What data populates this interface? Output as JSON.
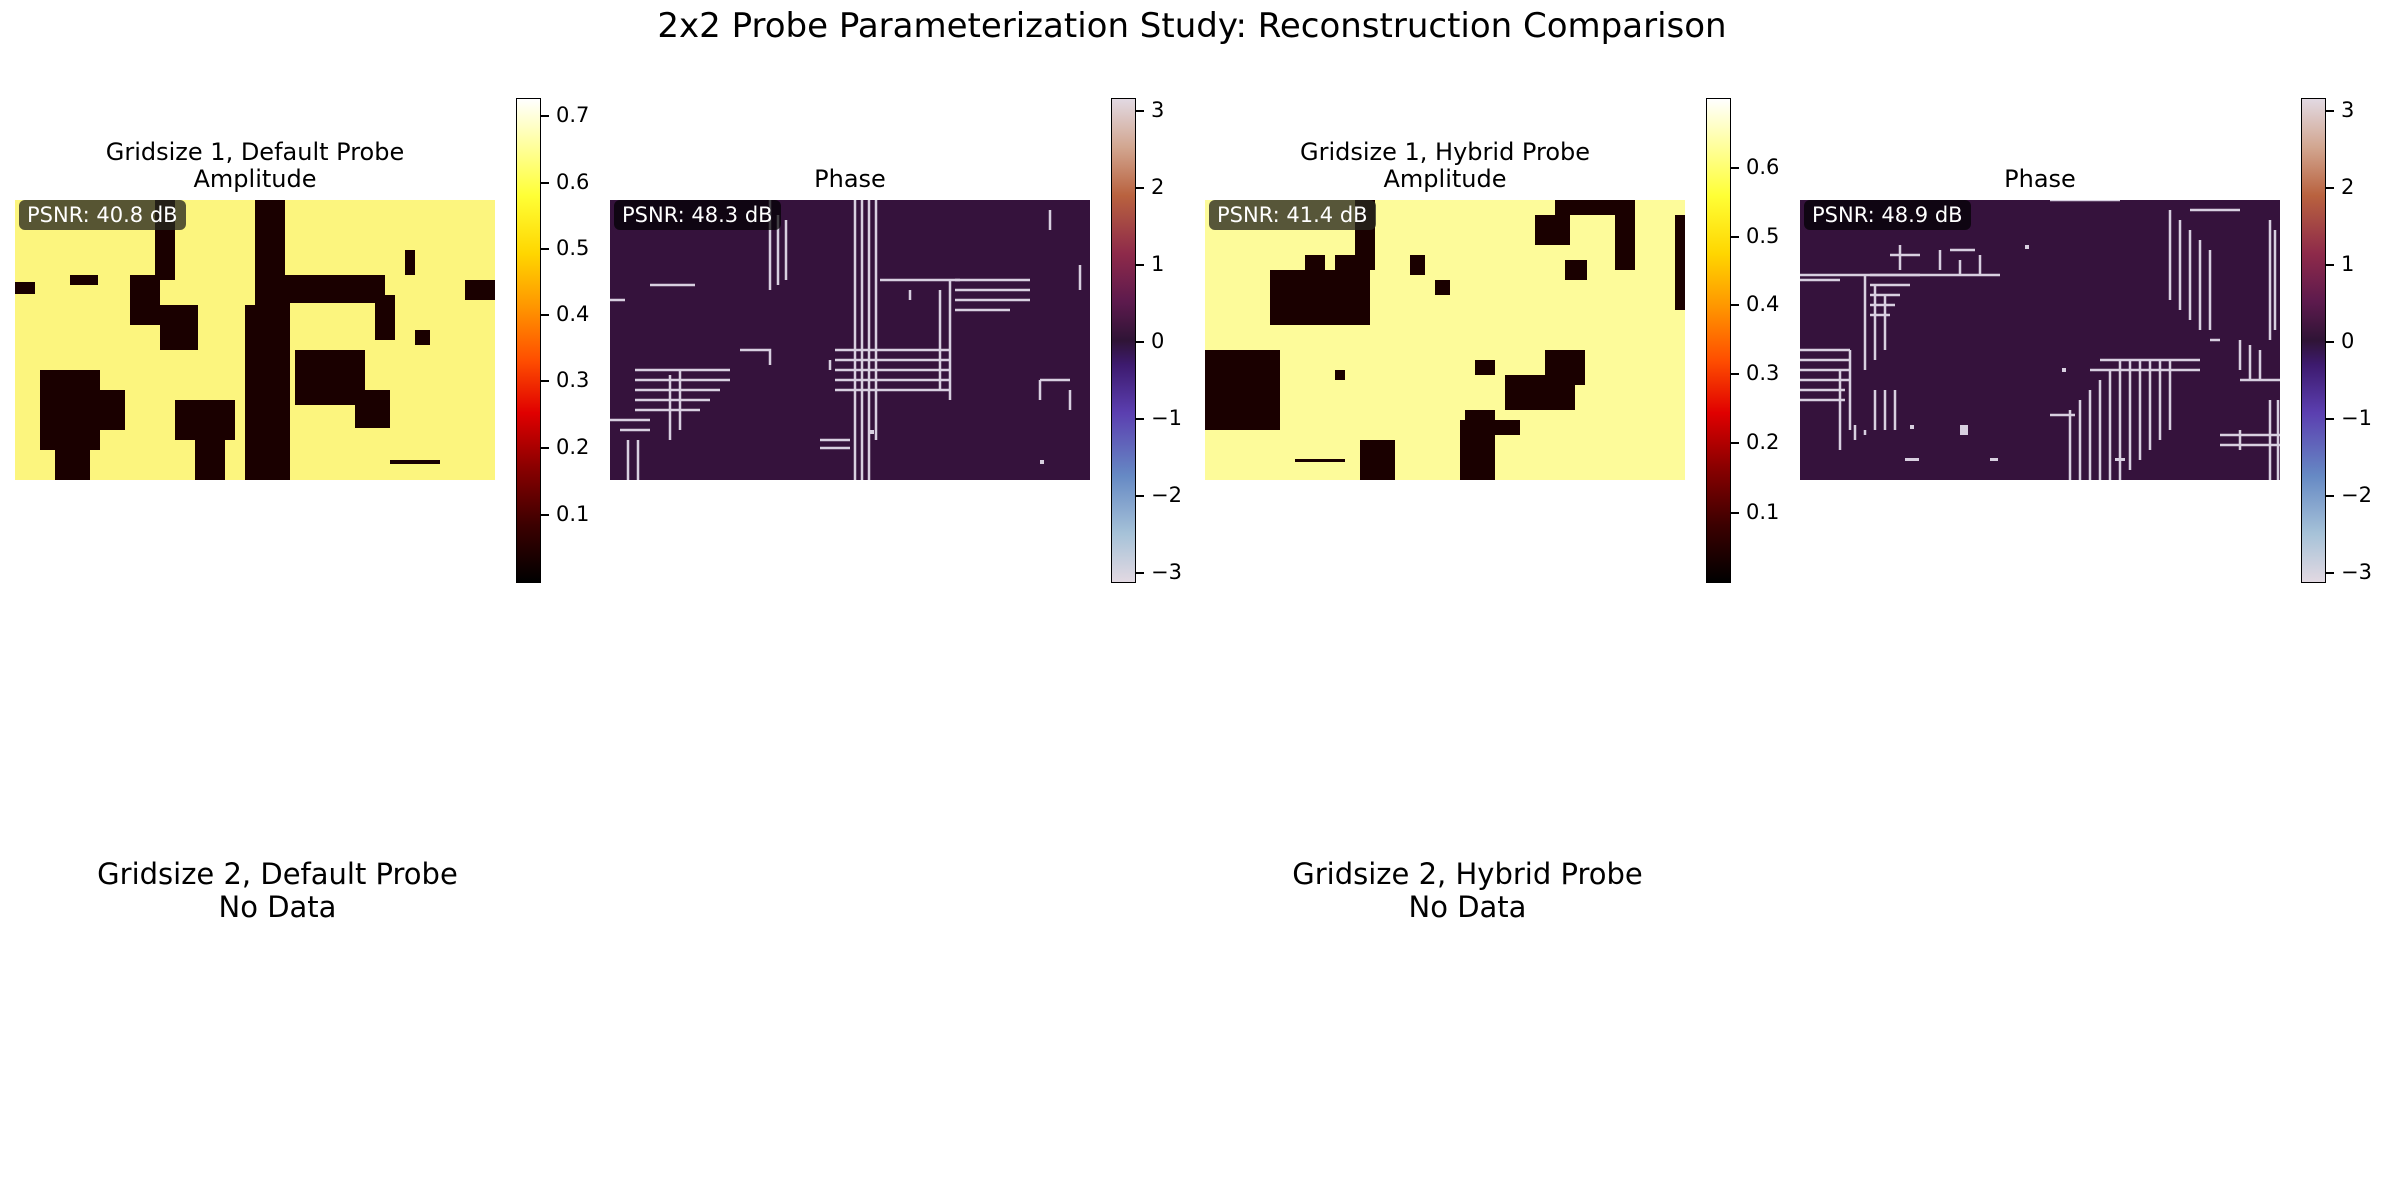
{
  "figure": {
    "title": "2x2 Probe Parameterization Study: Reconstruction Comparison"
  },
  "chart_data": [
    {
      "type": "heatmap",
      "panel": "gridsize1-default-amplitude",
      "title": "Gridsize 1, Default Probe\nAmplitude",
      "annotation": "PSNR: 40.8 dB",
      "colormap": "hot",
      "colorbar_ticks": [
        "0.1",
        "0.2",
        "0.3",
        "0.4",
        "0.5",
        "0.6",
        "0.7"
      ],
      "clim": [
        0.0,
        0.73
      ]
    },
    {
      "type": "heatmap",
      "panel": "gridsize1-default-phase",
      "title": "Phase",
      "annotation": "PSNR: 48.3 dB",
      "colormap": "twilight",
      "colorbar_ticks": [
        "3",
        "2",
        "1",
        "0",
        "−1",
        "−2",
        "−3"
      ],
      "clim": [
        -3.14,
        3.14
      ]
    },
    {
      "type": "heatmap",
      "panel": "gridsize1-hybrid-amplitude",
      "title": "Gridsize 1, Hybrid Probe\nAmplitude",
      "annotation": "PSNR: 41.4 dB",
      "colormap": "hot",
      "colorbar_ticks": [
        "0.1",
        "0.2",
        "0.3",
        "0.4",
        "0.5",
        "0.6"
      ],
      "clim": [
        0.0,
        0.7
      ]
    },
    {
      "type": "heatmap",
      "panel": "gridsize1-hybrid-phase",
      "title": "Phase",
      "annotation": "PSNR: 48.9 dB",
      "colormap": "twilight",
      "colorbar_ticks": [
        "3",
        "2",
        "1",
        "0",
        "−1",
        "−2",
        "−3"
      ],
      "clim": [
        -3.14,
        3.14
      ]
    },
    {
      "type": "heatmap",
      "panel": "gridsize2-default",
      "title": "Gridsize 2, Default Probe\nNo Data"
    },
    {
      "type": "heatmap",
      "panel": "gridsize2-hybrid",
      "title": "Gridsize 2, Hybrid Probe\nNo Data"
    }
  ],
  "labels": {
    "p1_title1": "Gridsize 1, Default Probe",
    "p1_title2": "Amplitude",
    "p1_psnr": "PSNR: 40.8 dB",
    "p2_title": "Phase",
    "p2_psnr": "PSNR: 48.3 dB",
    "p3_title1": "Gridsize 1, Hybrid Probe",
    "p3_title2": "Amplitude",
    "p3_psnr": "PSNR: 41.4 dB",
    "p4_title": "Phase",
    "p4_psnr": "PSNR: 48.9 dB",
    "p5_line1": "Gridsize 2, Default Probe",
    "p5_line2": "No Data",
    "p6_line1": "Gridsize 2, Hybrid Probe",
    "p6_line2": "No Data"
  },
  "colors": {
    "amplitude_high": "#fdf98c",
    "amplitude_low": "#1a0000",
    "phase_background": "#35123c",
    "phase_edge": "#d8cfe0"
  }
}
